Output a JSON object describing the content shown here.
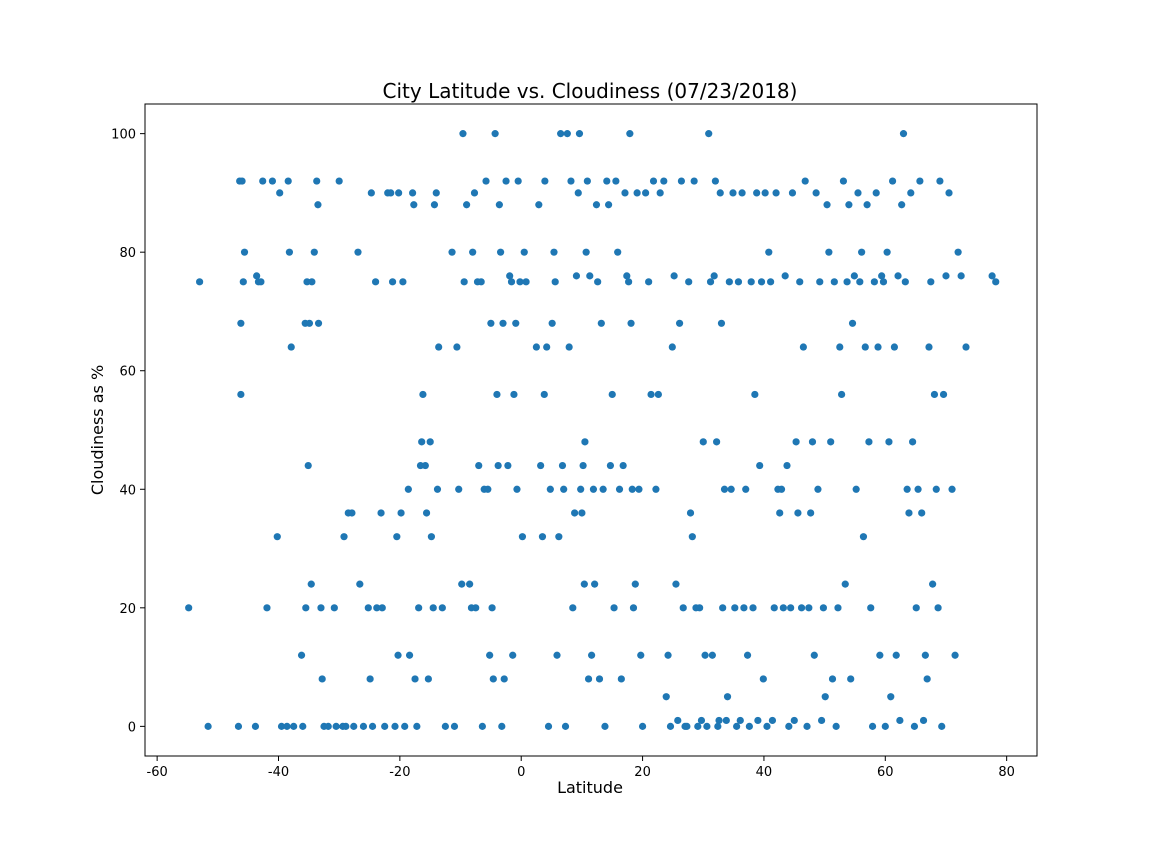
{
  "chart_data": {
    "type": "scatter",
    "title": "City Latitude vs. Cloudiness (07/23/2018)",
    "xlabel": "Latitude",
    "ylabel": "Cloudiness as %",
    "xlim": [
      -62,
      85
    ],
    "ylim": [
      -5,
      105
    ],
    "xticks": [
      "-60",
      "-40",
      "-20",
      "0",
      "20",
      "40",
      "60",
      "80"
    ],
    "yticks": [
      "0",
      "20",
      "40",
      "60",
      "80",
      "100"
    ],
    "grid": false,
    "marker_color": "#1f77b4",
    "points": [
      [
        -54.8,
        20
      ],
      [
        -53.0,
        75
      ],
      [
        -51.6,
        0
      ],
      [
        -46.6,
        0
      ],
      [
        -46.4,
        92
      ],
      [
        -46.2,
        68
      ],
      [
        -46.2,
        56
      ],
      [
        -46.0,
        92
      ],
      [
        -45.8,
        75
      ],
      [
        -45.6,
        80
      ],
      [
        -43.8,
        0
      ],
      [
        -43.6,
        76
      ],
      [
        -43.3,
        75
      ],
      [
        -42.9,
        75
      ],
      [
        -42.6,
        92
      ],
      [
        -41.9,
        20
      ],
      [
        -41.0,
        92
      ],
      [
        -40.2,
        32
      ],
      [
        -39.8,
        90
      ],
      [
        -39.5,
        0
      ],
      [
        -38.6,
        0
      ],
      [
        -38.4,
        92
      ],
      [
        -38.2,
        80
      ],
      [
        -37.9,
        64
      ],
      [
        -37.5,
        0
      ],
      [
        -36.2,
        12
      ],
      [
        -36.0,
        0
      ],
      [
        -35.6,
        68
      ],
      [
        -35.5,
        20
      ],
      [
        -35.3,
        75
      ],
      [
        -35.1,
        44
      ],
      [
        -34.9,
        68
      ],
      [
        -34.6,
        24
      ],
      [
        -34.5,
        75
      ],
      [
        -34.1,
        80
      ],
      [
        -33.7,
        92
      ],
      [
        -33.5,
        88
      ],
      [
        -33.4,
        68
      ],
      [
        -33.0,
        20
      ],
      [
        -32.8,
        8
      ],
      [
        -32.5,
        0
      ],
      [
        -31.8,
        0
      ],
      [
        -30.8,
        20
      ],
      [
        -30.5,
        0
      ],
      [
        -30.0,
        92
      ],
      [
        -29.4,
        0
      ],
      [
        -29.2,
        32
      ],
      [
        -28.9,
        0
      ],
      [
        -28.5,
        36
      ],
      [
        -27.9,
        36
      ],
      [
        -27.6,
        0
      ],
      [
        -26.9,
        80
      ],
      [
        -26.6,
        24
      ],
      [
        -26.0,
        0
      ],
      [
        -25.2,
        20
      ],
      [
        -24.9,
        8
      ],
      [
        -24.7,
        90
      ],
      [
        -24.5,
        0
      ],
      [
        -24.0,
        75
      ],
      [
        -23.8,
        20
      ],
      [
        -23.1,
        36
      ],
      [
        -22.9,
        20
      ],
      [
        -22.5,
        0
      ],
      [
        -22.0,
        90
      ],
      [
        -21.5,
        90
      ],
      [
        -21.2,
        75
      ],
      [
        -20.8,
        0
      ],
      [
        -20.5,
        32
      ],
      [
        -20.3,
        12
      ],
      [
        -20.2,
        90
      ],
      [
        -19.8,
        36
      ],
      [
        -19.5,
        75
      ],
      [
        -19.2,
        0
      ],
      [
        -18.6,
        40
      ],
      [
        -18.4,
        12
      ],
      [
        -17.9,
        90
      ],
      [
        -17.7,
        88
      ],
      [
        -17.5,
        8
      ],
      [
        -17.2,
        0
      ],
      [
        -16.9,
        20
      ],
      [
        -16.6,
        44
      ],
      [
        -16.4,
        48
      ],
      [
        -16.2,
        56
      ],
      [
        -15.8,
        44
      ],
      [
        -15.6,
        36
      ],
      [
        -15.3,
        8
      ],
      [
        -15.0,
        48
      ],
      [
        -14.8,
        32
      ],
      [
        -14.5,
        20
      ],
      [
        -14.3,
        88
      ],
      [
        -14.0,
        90
      ],
      [
        -13.8,
        40
      ],
      [
        -13.6,
        64
      ],
      [
        -13.0,
        20
      ],
      [
        -12.5,
        0
      ],
      [
        -11.4,
        80
      ],
      [
        -11.0,
        0
      ],
      [
        -10.6,
        64
      ],
      [
        -10.3,
        40
      ],
      [
        -9.8,
        24
      ],
      [
        -9.6,
        100
      ],
      [
        -9.4,
        75
      ],
      [
        -9.0,
        88
      ],
      [
        -8.5,
        24
      ],
      [
        -8.2,
        20
      ],
      [
        -8.0,
        80
      ],
      [
        -7.7,
        90
      ],
      [
        -7.5,
        20
      ],
      [
        -7.2,
        75
      ],
      [
        -7.0,
        44
      ],
      [
        -6.6,
        75
      ],
      [
        -6.4,
        0
      ],
      [
        -6.1,
        40
      ],
      [
        -5.8,
        92
      ],
      [
        -5.5,
        40
      ],
      [
        -5.2,
        12
      ],
      [
        -5.0,
        68
      ],
      [
        -4.8,
        20
      ],
      [
        -4.6,
        8
      ],
      [
        -4.3,
        100
      ],
      [
        -4.0,
        56
      ],
      [
        -3.8,
        44
      ],
      [
        -3.6,
        88
      ],
      [
        -3.4,
        80
      ],
      [
        -3.2,
        0
      ],
      [
        -3.0,
        68
      ],
      [
        -2.8,
        8
      ],
      [
        -2.5,
        92
      ],
      [
        -2.2,
        44
      ],
      [
        -1.9,
        76
      ],
      [
        -1.6,
        75
      ],
      [
        -1.4,
        12
      ],
      [
        -1.2,
        56
      ],
      [
        -0.9,
        68
      ],
      [
        -0.7,
        40
      ],
      [
        -0.5,
        92
      ],
      [
        -0.2,
        75
      ],
      [
        0.2,
        32
      ],
      [
        0.5,
        80
      ],
      [
        0.8,
        75
      ],
      [
        2.5,
        64
      ],
      [
        2.9,
        88
      ],
      [
        3.2,
        44
      ],
      [
        3.5,
        32
      ],
      [
        3.8,
        56
      ],
      [
        3.9,
        92
      ],
      [
        4.2,
        64
      ],
      [
        4.5,
        0
      ],
      [
        4.8,
        40
      ],
      [
        5.1,
        68
      ],
      [
        5.4,
        80
      ],
      [
        5.6,
        75
      ],
      [
        5.9,
        12
      ],
      [
        6.2,
        32
      ],
      [
        6.5,
        100
      ],
      [
        6.8,
        44
      ],
      [
        7.0,
        40
      ],
      [
        7.3,
        0
      ],
      [
        7.6,
        100
      ],
      [
        7.9,
        64
      ],
      [
        8.2,
        92
      ],
      [
        8.5,
        20
      ],
      [
        8.8,
        36
      ],
      [
        9.1,
        76
      ],
      [
        9.4,
        90
      ],
      [
        9.6,
        100
      ],
      [
        9.8,
        40
      ],
      [
        10.0,
        36
      ],
      [
        10.2,
        44
      ],
      [
        10.4,
        24
      ],
      [
        10.5,
        48
      ],
      [
        10.7,
        80
      ],
      [
        10.9,
        92
      ],
      [
        11.1,
        8
      ],
      [
        11.3,
        76
      ],
      [
        11.6,
        12
      ],
      [
        11.9,
        40
      ],
      [
        12.1,
        24
      ],
      [
        12.4,
        88
      ],
      [
        12.6,
        75
      ],
      [
        12.9,
        8
      ],
      [
        13.2,
        68
      ],
      [
        13.5,
        40
      ],
      [
        13.8,
        0
      ],
      [
        14.1,
        92
      ],
      [
        14.4,
        88
      ],
      [
        14.7,
        44
      ],
      [
        15.0,
        56
      ],
      [
        15.3,
        20
      ],
      [
        15.6,
        92
      ],
      [
        15.9,
        80
      ],
      [
        16.2,
        40
      ],
      [
        16.5,
        8
      ],
      [
        16.8,
        44
      ],
      [
        17.1,
        90
      ],
      [
        17.4,
        76
      ],
      [
        17.7,
        75
      ],
      [
        17.9,
        100
      ],
      [
        18.1,
        68
      ],
      [
        18.3,
        40
      ],
      [
        18.5,
        20
      ],
      [
        18.8,
        24
      ],
      [
        19.1,
        90
      ],
      [
        19.4,
        40
      ],
      [
        19.7,
        12
      ],
      [
        20.0,
        0
      ],
      [
        20.5,
        90
      ],
      [
        21.0,
        75
      ],
      [
        21.4,
        56
      ],
      [
        21.8,
        92
      ],
      [
        22.2,
        40
      ],
      [
        22.6,
        56
      ],
      [
        22.9,
        90
      ],
      [
        23.5,
        92
      ],
      [
        23.9,
        5
      ],
      [
        24.2,
        12
      ],
      [
        24.6,
        0
      ],
      [
        24.9,
        64
      ],
      [
        25.2,
        76
      ],
      [
        25.5,
        24
      ],
      [
        25.8,
        1
      ],
      [
        26.1,
        68
      ],
      [
        26.4,
        92
      ],
      [
        26.7,
        20
      ],
      [
        27.0,
        0
      ],
      [
        27.3,
        0
      ],
      [
        27.6,
        75
      ],
      [
        27.9,
        36
      ],
      [
        28.2,
        32
      ],
      [
        28.5,
        92
      ],
      [
        28.8,
        20
      ],
      [
        29.1,
        0
      ],
      [
        29.4,
        20
      ],
      [
        29.7,
        1
      ],
      [
        30.0,
        48
      ],
      [
        30.3,
        12
      ],
      [
        30.6,
        0
      ],
      [
        30.9,
        100
      ],
      [
        31.2,
        75
      ],
      [
        31.5,
        12
      ],
      [
        31.8,
        76
      ],
      [
        32.0,
        92
      ],
      [
        32.2,
        48
      ],
      [
        32.4,
        0
      ],
      [
        32.6,
        1
      ],
      [
        32.8,
        90
      ],
      [
        33.0,
        68
      ],
      [
        33.2,
        20
      ],
      [
        33.5,
        40
      ],
      [
        33.8,
        1
      ],
      [
        34.0,
        5
      ],
      [
        34.3,
        75
      ],
      [
        34.6,
        40
      ],
      [
        34.9,
        90
      ],
      [
        35.2,
        20
      ],
      [
        35.5,
        0
      ],
      [
        35.8,
        75
      ],
      [
        36.1,
        1
      ],
      [
        36.4,
        90
      ],
      [
        36.7,
        20
      ],
      [
        37.0,
        40
      ],
      [
        37.3,
        12
      ],
      [
        37.6,
        0
      ],
      [
        37.9,
        75
      ],
      [
        38.2,
        20
      ],
      [
        38.5,
        56
      ],
      [
        38.8,
        90
      ],
      [
        39.0,
        1
      ],
      [
        39.3,
        44
      ],
      [
        39.6,
        75
      ],
      [
        39.9,
        8
      ],
      [
        40.2,
        90
      ],
      [
        40.5,
        0
      ],
      [
        40.8,
        80
      ],
      [
        41.1,
        75
      ],
      [
        41.4,
        1
      ],
      [
        41.7,
        20
      ],
      [
        42.0,
        90
      ],
      [
        42.3,
        40
      ],
      [
        42.6,
        36
      ],
      [
        42.9,
        40
      ],
      [
        43.2,
        20
      ],
      [
        43.5,
        76
      ],
      [
        43.8,
        44
      ],
      [
        44.1,
        0
      ],
      [
        44.4,
        20
      ],
      [
        44.7,
        90
      ],
      [
        45.0,
        1
      ],
      [
        45.3,
        48
      ],
      [
        45.6,
        36
      ],
      [
        45.9,
        75
      ],
      [
        46.2,
        20
      ],
      [
        46.5,
        64
      ],
      [
        46.8,
        92
      ],
      [
        47.1,
        0
      ],
      [
        47.4,
        20
      ],
      [
        47.7,
        36
      ],
      [
        48.0,
        48
      ],
      [
        48.3,
        12
      ],
      [
        48.6,
        90
      ],
      [
        48.9,
        40
      ],
      [
        49.2,
        75
      ],
      [
        49.5,
        1
      ],
      [
        49.8,
        20
      ],
      [
        50.1,
        5
      ],
      [
        50.4,
        88
      ],
      [
        50.7,
        80
      ],
      [
        51.0,
        48
      ],
      [
        51.3,
        8
      ],
      [
        51.6,
        75
      ],
      [
        51.9,
        0
      ],
      [
        52.2,
        20
      ],
      [
        52.5,
        64
      ],
      [
        52.8,
        56
      ],
      [
        53.1,
        92
      ],
      [
        53.4,
        24
      ],
      [
        53.7,
        75
      ],
      [
        54.0,
        88
      ],
      [
        54.3,
        8
      ],
      [
        54.6,
        68
      ],
      [
        54.9,
        76
      ],
      [
        55.2,
        40
      ],
      [
        55.5,
        90
      ],
      [
        55.8,
        75
      ],
      [
        56.1,
        80
      ],
      [
        56.4,
        32
      ],
      [
        56.7,
        64
      ],
      [
        57.0,
        88
      ],
      [
        57.3,
        48
      ],
      [
        57.6,
        20
      ],
      [
        57.9,
        0
      ],
      [
        58.2,
        75
      ],
      [
        58.5,
        90
      ],
      [
        58.8,
        64
      ],
      [
        59.1,
        12
      ],
      [
        59.4,
        76
      ],
      [
        59.7,
        75
      ],
      [
        60.0,
        0
      ],
      [
        60.3,
        80
      ],
      [
        60.6,
        48
      ],
      [
        60.9,
        5
      ],
      [
        61.2,
        92
      ],
      [
        61.5,
        64
      ],
      [
        61.8,
        12
      ],
      [
        62.1,
        76
      ],
      [
        62.4,
        1
      ],
      [
        62.7,
        88
      ],
      [
        63.0,
        100
      ],
      [
        63.3,
        75
      ],
      [
        63.6,
        40
      ],
      [
        63.9,
        36
      ],
      [
        64.2,
        90
      ],
      [
        64.5,
        48
      ],
      [
        64.8,
        0
      ],
      [
        65.1,
        20
      ],
      [
        65.4,
        40
      ],
      [
        65.7,
        92
      ],
      [
        66.0,
        36
      ],
      [
        66.3,
        1
      ],
      [
        66.6,
        12
      ],
      [
        66.9,
        8
      ],
      [
        67.2,
        64
      ],
      [
        67.5,
        75
      ],
      [
        67.8,
        24
      ],
      [
        68.1,
        56
      ],
      [
        68.4,
        40
      ],
      [
        68.7,
        20
      ],
      [
        69.0,
        92
      ],
      [
        69.3,
        0
      ],
      [
        69.6,
        56
      ],
      [
        70.0,
        76
      ],
      [
        70.5,
        90
      ],
      [
        71.0,
        40
      ],
      [
        71.5,
        12
      ],
      [
        72.0,
        80
      ],
      [
        72.5,
        76
      ],
      [
        73.3,
        64
      ],
      [
        77.6,
        76
      ],
      [
        78.2,
        75
      ]
    ]
  }
}
